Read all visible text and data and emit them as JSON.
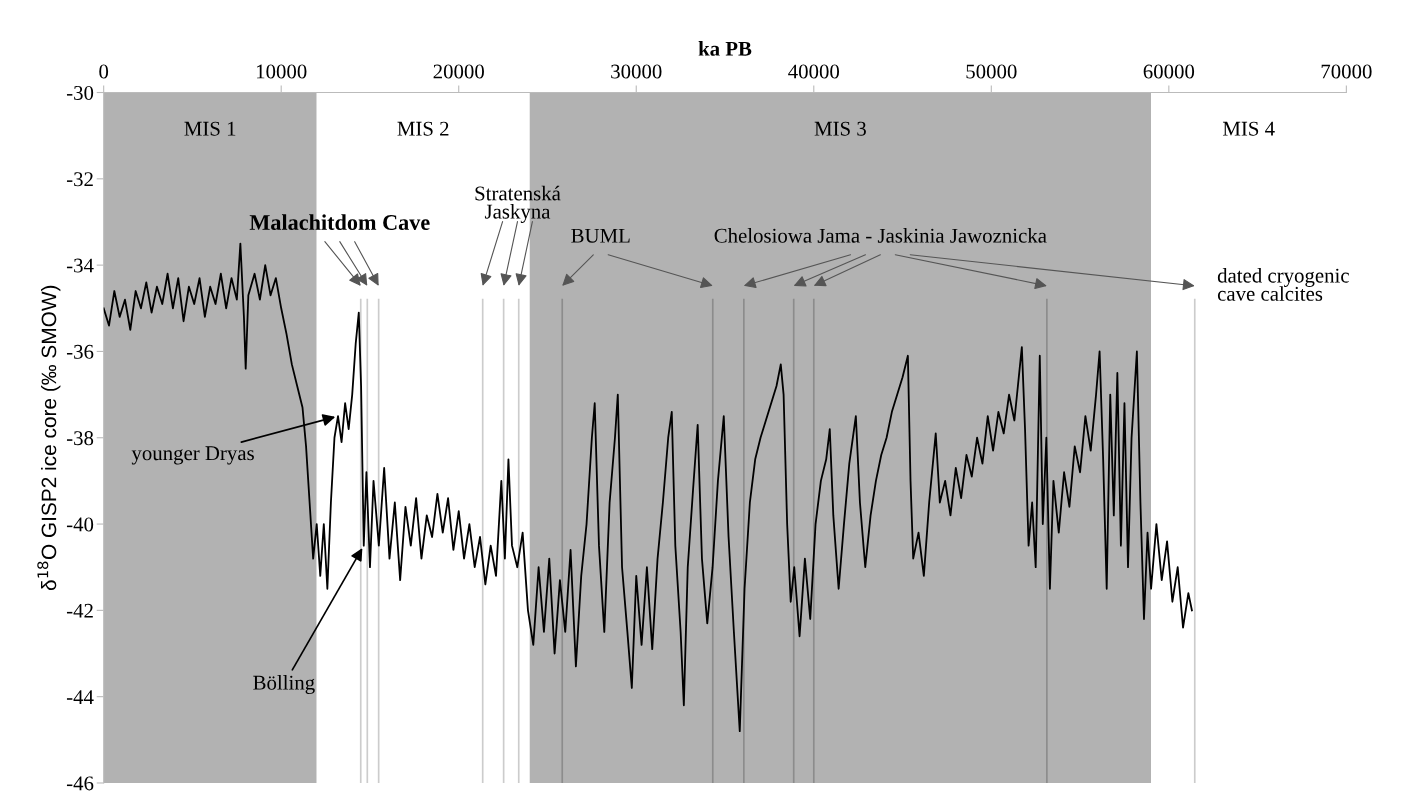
{
  "chart_data": {
    "type": "line",
    "xlabel": "ka PB",
    "ylabel": "δ$^{18}$O GISP2 ice core (‰ SMOW)",
    "xlim": [
      0,
      70000
    ],
    "xticks": [
      0,
      10000,
      20000,
      30000,
      40000,
      50000,
      60000,
      70000
    ],
    "ylim": [
      -46,
      -30
    ],
    "yticks": [
      -30,
      -32,
      -34,
      -36,
      -38,
      -40,
      -42,
      -44,
      -46
    ],
    "grid": false,
    "legend": false,
    "marker": "none",
    "line_style": "solid",
    "series": [
      {
        "color": "#000000",
        "x": [
          0,
          300,
          600,
          900,
          1200,
          1500,
          1800,
          2100,
          2400,
          2700,
          3000,
          3300,
          3600,
          3900,
          4200,
          4500,
          4800,
          5100,
          5400,
          5700,
          6000,
          6300,
          6600,
          6900,
          7200,
          7500,
          7700,
          7900,
          8000,
          8150,
          8500,
          8800,
          9100,
          9400,
          9700,
          10000,
          10300,
          10600,
          10900,
          11200,
          11400,
          11600,
          11800,
          12000,
          12200,
          12400,
          12600,
          12800,
          13000,
          13200,
          13400,
          13600,
          13800,
          14000,
          14200,
          14370,
          14500,
          14650,
          14800,
          15000,
          15200,
          15500,
          15800,
          16100,
          16400,
          16700,
          17000,
          17300,
          17600,
          17900,
          18200,
          18500,
          18800,
          19100,
          19400,
          19700,
          20000,
          20300,
          20600,
          20900,
          21200,
          21500,
          21800,
          22100,
          22400,
          22600,
          22800,
          23000,
          23300,
          23600,
          23900,
          24200,
          24500,
          24800,
          25100,
          25400,
          25700,
          26000,
          26300,
          26600,
          26900,
          27200,
          27500,
          27660,
          27900,
          28200,
          28500,
          28800,
          28960,
          29200,
          29500,
          29750,
          30000,
          30300,
          30600,
          30900,
          31200,
          31500,
          31800,
          32000,
          32200,
          32500,
          32680,
          32900,
          33200,
          33460,
          33700,
          34000,
          34300,
          34600,
          34930,
          35200,
          35500,
          35830,
          36100,
          36400,
          36700,
          37000,
          37300,
          37600,
          37900,
          38140,
          38300,
          38500,
          38700,
          38900,
          39200,
          39500,
          39800,
          40100,
          40400,
          40700,
          40900,
          41100,
          41400,
          41700,
          42000,
          42370,
          42600,
          42900,
          43200,
          43500,
          43800,
          44100,
          44400,
          44700,
          45000,
          45300,
          45450,
          45600,
          45900,
          46200,
          46500,
          46870,
          47100,
          47400,
          47700,
          48000,
          48300,
          48600,
          48900,
          49200,
          49500,
          49800,
          50100,
          50400,
          50700,
          51000,
          51300,
          51720,
          51900,
          52100,
          52300,
          52500,
          52730,
          52900,
          53100,
          53300,
          53500,
          53800,
          54100,
          54400,
          54700,
          55000,
          55300,
          55600,
          55900,
          56100,
          56300,
          56500,
          56700,
          56900,
          57100,
          57300,
          57500,
          57700,
          57900,
          58200,
          58400,
          58600,
          58800,
          59000,
          59300,
          59600,
          59900,
          60200,
          60500,
          60800,
          61100,
          61300
        ],
        "values": [
          -35.0,
          -35.4,
          -34.6,
          -35.2,
          -34.8,
          -35.5,
          -34.6,
          -35.0,
          -34.4,
          -35.1,
          -34.5,
          -34.9,
          -34.2,
          -35.0,
          -34.3,
          -35.3,
          -34.5,
          -34.9,
          -34.3,
          -35.2,
          -34.5,
          -34.9,
          -34.2,
          -35.0,
          -34.3,
          -34.8,
          -33.5,
          -35.2,
          -36.4,
          -34.7,
          -34.2,
          -34.8,
          -34.0,
          -34.7,
          -34.3,
          -35.0,
          -35.6,
          -36.3,
          -36.8,
          -37.3,
          -38.2,
          -39.5,
          -40.8,
          -40.0,
          -41.2,
          -40.0,
          -41.5,
          -39.5,
          -38.0,
          -37.5,
          -38.1,
          -37.2,
          -37.8,
          -37.0,
          -35.8,
          -35.1,
          -36.8,
          -40.5,
          -38.8,
          -41.0,
          -39.0,
          -40.5,
          -38.7,
          -40.8,
          -39.5,
          -41.3,
          -39.6,
          -40.5,
          -39.4,
          -40.8,
          -39.8,
          -40.3,
          -39.3,
          -40.2,
          -39.4,
          -40.6,
          -39.7,
          -40.8,
          -40.0,
          -41.0,
          -40.3,
          -41.4,
          -40.5,
          -41.2,
          -39.0,
          -40.8,
          -38.5,
          -40.5,
          -41.0,
          -40.2,
          -42.0,
          -42.8,
          -41.0,
          -42.5,
          -40.8,
          -43.0,
          -41.3,
          -42.5,
          -40.6,
          -43.3,
          -41.2,
          -40.0,
          -38.0,
          -37.2,
          -40.5,
          -42.5,
          -39.5,
          -38.0,
          -37.0,
          -41.0,
          -42.5,
          -43.8,
          -41.2,
          -42.8,
          -41.0,
          -42.9,
          -40.8,
          -39.5,
          -38.0,
          -37.4,
          -40.5,
          -42.5,
          -44.2,
          -41.0,
          -39.2,
          -37.7,
          -40.8,
          -42.3,
          -41.0,
          -39.0,
          -37.5,
          -40.3,
          -42.5,
          -44.8,
          -41.5,
          -39.5,
          -38.5,
          -38.0,
          -37.6,
          -37.2,
          -36.8,
          -36.3,
          -37.0,
          -40.0,
          -41.8,
          -41.0,
          -42.6,
          -40.8,
          -42.2,
          -40.0,
          -39.0,
          -38.5,
          -37.8,
          -39.8,
          -41.5,
          -40.0,
          -38.6,
          -37.5,
          -39.5,
          -41.0,
          -39.8,
          -39.0,
          -38.4,
          -38.0,
          -37.4,
          -37.0,
          -36.6,
          -36.1,
          -39.0,
          -40.8,
          -40.2,
          -41.2,
          -39.5,
          -37.9,
          -39.5,
          -39.0,
          -39.8,
          -38.7,
          -39.4,
          -38.4,
          -38.9,
          -38.0,
          -38.6,
          -37.5,
          -38.3,
          -37.4,
          -37.9,
          -37.0,
          -37.6,
          -35.9,
          -37.8,
          -40.5,
          -39.5,
          -41.0,
          -36.1,
          -40.0,
          -38.0,
          -41.5,
          -39.0,
          -40.2,
          -38.8,
          -39.6,
          -38.2,
          -38.8,
          -37.5,
          -38.3,
          -37.0,
          -36.0,
          -38.5,
          -41.5,
          -37.0,
          -39.8,
          -36.5,
          -40.5,
          -37.2,
          -41.0,
          -38.0,
          -36.0,
          -39.5,
          -42.2,
          -40.2,
          -41.5,
          -40.0,
          -41.3,
          -40.4,
          -41.8,
          -41.0,
          -42.4,
          -41.6,
          -42.0
        ]
      }
    ],
    "bands": [
      {
        "axis": "x",
        "from": 0,
        "to": 12000,
        "label": "MIS 1",
        "color": "#b2b2b2"
      },
      {
        "axis": "x",
        "from": 12000,
        "to": 24000,
        "label": "MIS 2",
        "color": "#ffffff"
      },
      {
        "axis": "x",
        "from": 24000,
        "to": 59000,
        "label": "MIS 3",
        "color": "#b2b2b2"
      },
      {
        "axis": "x",
        "from": 59000,
        "to": 70000,
        "label": "MIS 4",
        "color": "#ffffff"
      }
    ],
    "ref_lines": [
      {
        "axis": "x",
        "value": 14480,
        "color": "#cccccc"
      },
      {
        "axis": "x",
        "value": 14850,
        "color": "#cccccc"
      },
      {
        "axis": "x",
        "value": 15490,
        "color": "#cccccc"
      },
      {
        "axis": "x",
        "value": 21350,
        "color": "#cccccc"
      },
      {
        "axis": "x",
        "value": 22530,
        "color": "#cccccc"
      },
      {
        "axis": "x",
        "value": 23380,
        "color": "#cccccc"
      },
      {
        "axis": "x",
        "value": 25830,
        "color": "#8c8c8c"
      },
      {
        "axis": "x",
        "value": 34310,
        "color": "#8c8c8c"
      },
      {
        "axis": "x",
        "value": 36060,
        "color": "#8c8c8c"
      },
      {
        "axis": "x",
        "value": 38870,
        "color": "#8c8c8c"
      },
      {
        "axis": "x",
        "value": 40000,
        "color": "#8c8c8c"
      },
      {
        "axis": "x",
        "value": 53130,
        "color": "#8c8c8c"
      },
      {
        "axis": "x",
        "value": 61460,
        "color": "#cccccc"
      }
    ],
    "annotations": [
      "Malachitdom Cave",
      "Stratenská\nJaskyna",
      "BUML",
      "Chelosiowa Jama - Jaskinia Jawoznicka",
      "dated cryogenic\ncave calcites",
      {
        "text": "younger Dryas",
        "x": 13200,
        "y": -37.5
      },
      {
        "text": "Bölling",
        "x": 14650,
        "y": -40.5
      }
    ]
  }
}
